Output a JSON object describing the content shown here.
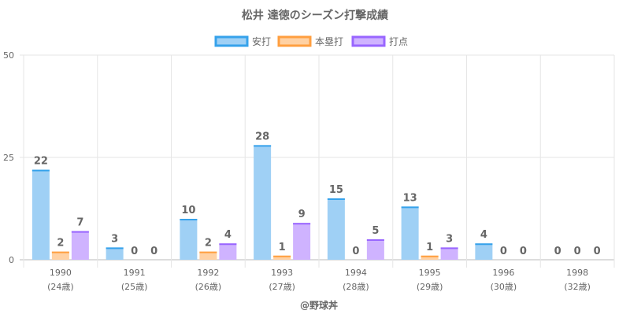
{
  "chart_data": {
    "type": "bar",
    "title": "松井 達徳のシーズン打撃成績",
    "categories": [
      "1990",
      "1991",
      "1992",
      "1993",
      "1994",
      "1995",
      "1996",
      "1998"
    ],
    "sublabels": [
      "(24歳)",
      "(25歳)",
      "(26歳)",
      "(27歳)",
      "(28歳)",
      "(29歳)",
      "(30歳)",
      "(32歳)"
    ],
    "series": [
      {
        "name": "安打",
        "values": [
          22,
          3,
          10,
          28,
          15,
          13,
          4,
          0
        ],
        "fill": "#9fd0f5",
        "stroke": "#36a2eb"
      },
      {
        "name": "本塁打",
        "values": [
          2,
          0,
          2,
          1,
          0,
          1,
          0,
          0
        ],
        "fill": "#ffd1a3",
        "stroke": "#ff9f40"
      },
      {
        "name": "打点",
        "values": [
          7,
          0,
          4,
          9,
          5,
          3,
          0,
          0
        ],
        "fill": "#cfb3ff",
        "stroke": "#9966ff"
      }
    ],
    "ylim": [
      0,
      50
    ],
    "yticks": [
      0,
      25,
      50
    ],
    "grid": true,
    "legend": "top-center",
    "footer": "@野球丼"
  }
}
